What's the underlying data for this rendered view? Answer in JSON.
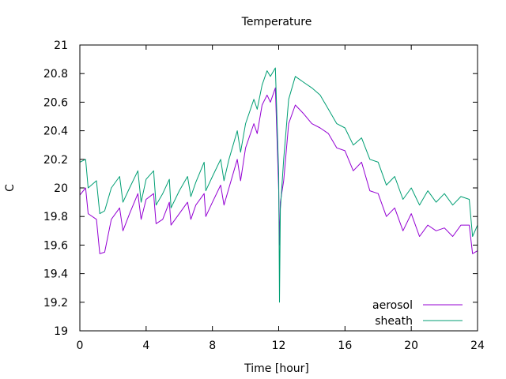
{
  "chart_data": {
    "type": "line",
    "title": "Temperature",
    "xlabel": "Time [hour]",
    "ylabel": "C",
    "xlim": [
      0,
      24
    ],
    "ylim": [
      19,
      21
    ],
    "xticks": [
      0,
      4,
      8,
      12,
      16,
      20,
      24
    ],
    "xtick_labels": [
      "0",
      "4",
      "8",
      "12",
      "16",
      "20",
      "24"
    ],
    "yticks": [
      19,
      19.2,
      19.4,
      19.6,
      19.8,
      20,
      20.2,
      20.4,
      20.6,
      20.8,
      21
    ],
    "ytick_labels": [
      "19",
      "19.2",
      "19.4",
      "19.6",
      "19.8",
      "20",
      "20.2",
      "20.4",
      "20.6",
      "20.8",
      "21"
    ],
    "grid": false,
    "legend_position": "bottom-right",
    "series": [
      {
        "name": "aerosol",
        "color": "#9400d3",
        "x": [
          0,
          0.35,
          0.5,
          1.0,
          1.2,
          1.5,
          1.9,
          2.4,
          2.6,
          3.0,
          3.5,
          3.7,
          4.0,
          4.45,
          4.6,
          5.0,
          5.4,
          5.5,
          6.0,
          6.5,
          6.7,
          7.0,
          7.5,
          7.6,
          8.0,
          8.5,
          8.7,
          9.0,
          9.5,
          9.7,
          10.0,
          10.5,
          10.7,
          11.0,
          11.3,
          11.5,
          11.8,
          12.0,
          12.05,
          12.1,
          12.3,
          12.6,
          13.0,
          13.5,
          14.0,
          14.5,
          15.0,
          15.5,
          16.0,
          16.5,
          17.0,
          17.5,
          18.0,
          18.5,
          19.0,
          19.5,
          20.0,
          20.5,
          21.0,
          21.5,
          22.0,
          22.5,
          23.0,
          23.5,
          23.7,
          24.0
        ],
        "y": [
          19.95,
          20.0,
          19.82,
          19.78,
          19.54,
          19.55,
          19.78,
          19.86,
          19.7,
          19.82,
          19.96,
          19.78,
          19.92,
          19.96,
          19.75,
          19.78,
          19.9,
          19.74,
          19.82,
          19.9,
          19.78,
          19.88,
          19.96,
          19.8,
          19.9,
          20.02,
          19.88,
          20.0,
          20.2,
          20.05,
          20.28,
          20.45,
          20.38,
          20.58,
          20.65,
          20.6,
          20.7,
          19.98,
          19.6,
          19.9,
          20.05,
          20.45,
          20.58,
          20.52,
          20.45,
          20.42,
          20.38,
          20.28,
          20.26,
          20.12,
          20.18,
          19.98,
          19.96,
          19.8,
          19.86,
          19.7,
          19.82,
          19.66,
          19.74,
          19.7,
          19.72,
          19.66,
          19.74,
          19.74,
          19.54,
          19.56
        ]
      },
      {
        "name": "sheath",
        "color": "#009e73",
        "x": [
          0,
          0.35,
          0.5,
          1.0,
          1.2,
          1.5,
          1.9,
          2.4,
          2.6,
          3.0,
          3.5,
          3.7,
          4.0,
          4.45,
          4.6,
          5.0,
          5.4,
          5.5,
          6.0,
          6.5,
          6.7,
          7.0,
          7.5,
          7.6,
          8.0,
          8.5,
          8.7,
          9.0,
          9.5,
          9.7,
          10.0,
          10.5,
          10.7,
          11.0,
          11.3,
          11.5,
          11.8,
          12.0,
          12.05,
          12.1,
          12.3,
          12.6,
          13.0,
          13.5,
          14.0,
          14.5,
          15.0,
          15.5,
          16.0,
          16.5,
          17.0,
          17.5,
          18.0,
          18.5,
          19.0,
          19.5,
          20.0,
          20.5,
          21.0,
          21.5,
          22.0,
          22.5,
          23.0,
          23.5,
          23.7,
          24.0
        ],
        "y": [
          20.18,
          20.2,
          20.0,
          20.05,
          19.82,
          19.84,
          20.0,
          20.08,
          19.9,
          20.0,
          20.12,
          19.9,
          20.06,
          20.12,
          19.88,
          19.96,
          20.06,
          19.86,
          19.98,
          20.08,
          19.94,
          20.04,
          20.18,
          19.98,
          20.08,
          20.2,
          20.05,
          20.2,
          20.4,
          20.25,
          20.45,
          20.62,
          20.55,
          20.72,
          20.82,
          20.78,
          20.84,
          20.1,
          19.2,
          19.85,
          20.2,
          20.62,
          20.78,
          20.74,
          20.7,
          20.65,
          20.55,
          20.45,
          20.42,
          20.3,
          20.35,
          20.2,
          20.18,
          20.02,
          20.08,
          19.92,
          20.0,
          19.88,
          19.98,
          19.9,
          19.96,
          19.88,
          19.94,
          19.92,
          19.66,
          19.74
        ]
      }
    ]
  }
}
